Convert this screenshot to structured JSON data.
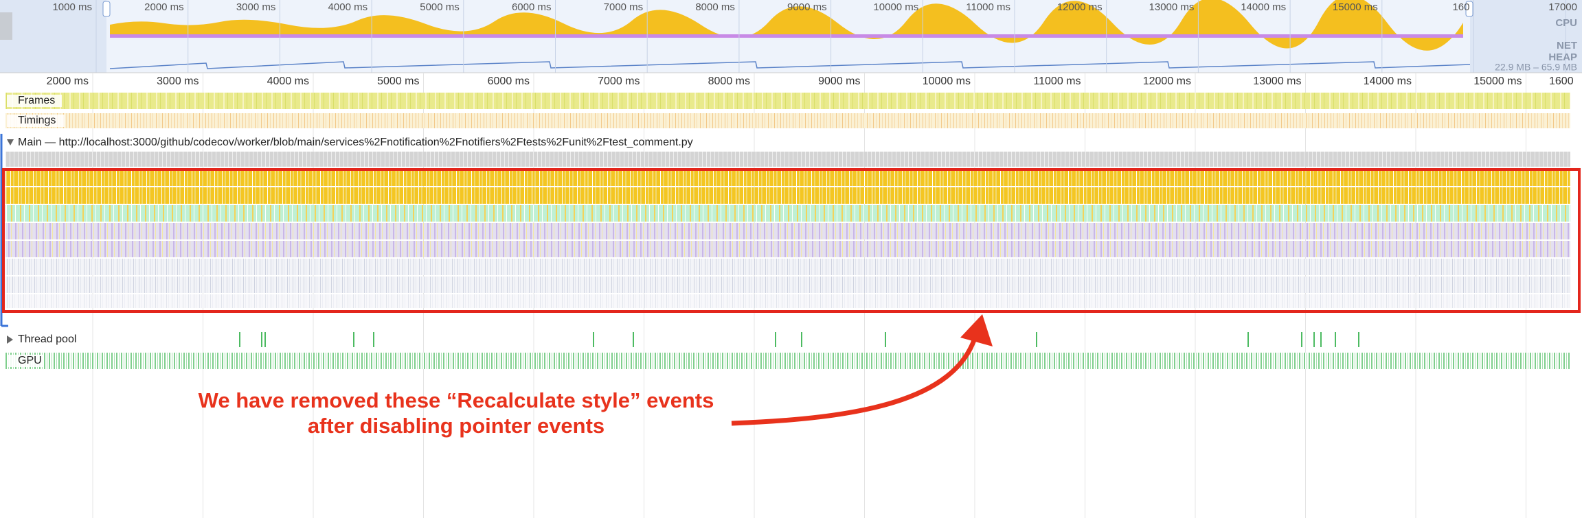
{
  "overview": {
    "ticks": [
      "1000 ms",
      "2000 ms",
      "3000 ms",
      "4000 ms",
      "5000 ms",
      "6000 ms",
      "7000 ms",
      "8000 ms",
      "9000 ms",
      "10000 ms",
      "11000 ms",
      "12000 ms",
      "13000 ms",
      "14000 ms",
      "15000 ms",
      "160",
      "17000"
    ],
    "cpu": "CPU",
    "net": "NET",
    "heap": "HEAP",
    "heap_range": "22.9 MB – 65.9 MB"
  },
  "ruler": {
    "ticks": [
      "2000 ms",
      "3000 ms",
      "4000 ms",
      "5000 ms",
      "6000 ms",
      "7000 ms",
      "8000 ms",
      "9000 ms",
      "10000 ms",
      "11000 ms",
      "12000 ms",
      "13000 ms",
      "14000 ms",
      "15000 ms",
      "1600"
    ]
  },
  "tracks": {
    "frames": "Frames",
    "timings": "Timings",
    "main": "Main — http://localhost:3000/github/codecov/worker/blob/main/services%2Fnotification%2Fnotifiers%2Ftests%2Funit%2Ftest_comment.py",
    "thread_pool": "Thread pool",
    "gpu": "GPU"
  },
  "annotation": {
    "lines": [
      "We have removed these “Recalculate style” events",
      "after disabling pointer events"
    ]
  }
}
